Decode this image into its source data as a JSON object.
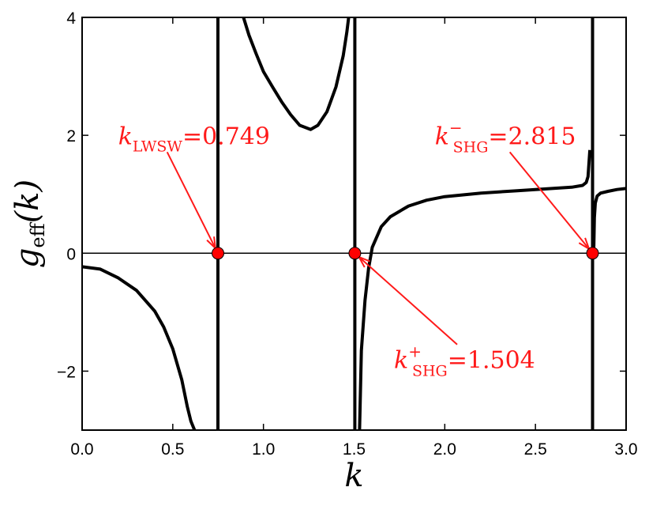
{
  "chart_data": {
    "type": "line",
    "title": "",
    "xlabel": "k",
    "ylabel_main": "g",
    "ylabel_sub": "eff",
    "ylabel_arg": "(k)",
    "xlim": [
      0.0,
      3.0
    ],
    "ylim": [
      -3,
      4
    ],
    "xticks": [
      0.0,
      0.5,
      1.0,
      1.5,
      2.0,
      2.5,
      3.0
    ],
    "xtick_labels": [
      "0.0",
      "0.5",
      "1.0",
      "1.5",
      "2.0",
      "2.5",
      "3.0"
    ],
    "yticks": [
      -2,
      0,
      2,
      4
    ],
    "ytick_labels": [
      "−2",
      "0",
      "2",
      "4"
    ],
    "grid": false,
    "zero_line": true,
    "line_color": "#000000",
    "marker_color": "#ff0000",
    "annotation_color": "#ff1a1a",
    "poles": [
      0.749,
      1.504,
      2.815
    ],
    "series": [
      {
        "segments": [
          {
            "x": [
              0.0,
              0.1,
              0.2,
              0.3,
              0.4,
              0.45,
              0.5,
              0.55,
              0.58,
              0.6,
              0.62
            ],
            "y": [
              -0.23,
              -0.27,
              -0.42,
              -0.63,
              -0.98,
              -1.25,
              -1.62,
              -2.15,
              -2.6,
              -2.85,
              -3.0
            ]
          },
          {
            "x": [
              0.89,
              0.92,
              0.96,
              1.0,
              1.05,
              1.1,
              1.15,
              1.2,
              1.26,
              1.3,
              1.35,
              1.4,
              1.44,
              1.46,
              1.47
            ],
            "y": [
              4.0,
              3.7,
              3.38,
              3.08,
              2.82,
              2.57,
              2.35,
              2.17,
              2.1,
              2.17,
              2.4,
              2.82,
              3.35,
              3.75,
              4.0
            ]
          },
          {
            "x": [
              1.53,
              1.54,
              1.56,
              1.58,
              1.6,
              1.65,
              1.7,
              1.8,
              1.9,
              2.0,
              2.2,
              2.4,
              2.6,
              2.7,
              2.76,
              2.78,
              2.79,
              2.8
            ],
            "y": [
              -3.0,
              -1.65,
              -0.8,
              -0.25,
              0.1,
              0.45,
              0.62,
              0.8,
              0.9,
              0.96,
              1.02,
              1.06,
              1.1,
              1.12,
              1.15,
              1.2,
              1.3,
              1.75
            ]
          },
          {
            "x": [
              2.822,
              2.825,
              2.83,
              2.84,
              2.86,
              2.9,
              2.95,
              3.0
            ],
            "y": [
              0.1,
              0.6,
              0.85,
              0.97,
              1.02,
              1.05,
              1.08,
              1.1
            ]
          }
        ]
      }
    ],
    "points": [
      {
        "x": 0.749,
        "y": 0
      },
      {
        "x": 1.504,
        "y": 0
      },
      {
        "x": 2.815,
        "y": 0
      }
    ],
    "annotations": [
      {
        "main": "k",
        "sub": "LWSW",
        "sup": "",
        "value": "=0.749",
        "text_x": 0.199,
        "text_y": 1.85,
        "point_x": 0.749,
        "point_y": 0
      },
      {
        "main": "k",
        "sub": "SHG",
        "sup": "−",
        "value": "=2.815",
        "text_x": 1.945,
        "text_y": 1.85,
        "point_x": 2.815,
        "point_y": 0
      },
      {
        "main": "k",
        "sub": "SHG",
        "sup": "+",
        "value": "=1.504",
        "text_x": 1.72,
        "text_y": -1.95,
        "point_x": 1.504,
        "point_y": 0
      }
    ]
  }
}
